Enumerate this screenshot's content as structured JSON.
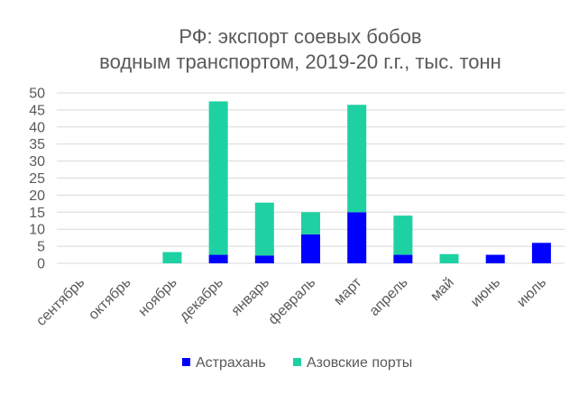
{
  "chart_data": {
    "type": "bar",
    "stacked": true,
    "title_lines": [
      "РФ: экспорт соевых бобов",
      "водным транспортом, 2019-20 г.г., тыс. тонн"
    ],
    "categories": [
      "сентябрь",
      "октябрь",
      "ноябрь",
      "декабрь",
      "январь",
      "февраль",
      "март",
      "апрель",
      "май",
      "июнь",
      "июль"
    ],
    "series": [
      {
        "name": "Астрахань",
        "color": "#0000ff",
        "values": [
          0,
          0,
          0,
          2.5,
          2.3,
          8.5,
          15,
          2.5,
          0,
          2.5,
          6
        ]
      },
      {
        "name": "Азовские порты",
        "color": "#1ed1a2",
        "values": [
          0,
          0,
          3.3,
          45,
          15.5,
          6.5,
          31.5,
          11.5,
          2.7,
          0,
          0
        ]
      }
    ],
    "ylim": [
      0,
      50
    ],
    "yticks": [
      0,
      5,
      10,
      15,
      20,
      25,
      30,
      35,
      40,
      45,
      50
    ],
    "grid": true,
    "legend_position": "bottom"
  }
}
